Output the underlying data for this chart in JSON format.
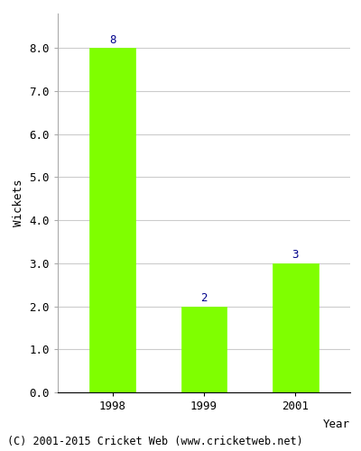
{
  "categories": [
    "1998",
    "1999",
    "2001"
  ],
  "values": [
    8,
    2,
    3
  ],
  "bar_color": "#7FFF00",
  "bar_edgecolor": "#7FFF00",
  "xlabel": "Year",
  "ylabel": "Wickets",
  "ylim": [
    0,
    8.8
  ],
  "yticks": [
    0.0,
    1.0,
    2.0,
    3.0,
    4.0,
    5.0,
    6.0,
    7.0,
    8.0
  ],
  "annotation_color": "#00008B",
  "annotation_fontsize": 9,
  "footer": "(C) 2001-2015 Cricket Web (www.cricketweb.net)",
  "footer_fontsize": 8.5,
  "axis_label_fontsize": 9,
  "tick_fontsize": 9,
  "background_color": "#ffffff",
  "grid_color": "#cccccc"
}
